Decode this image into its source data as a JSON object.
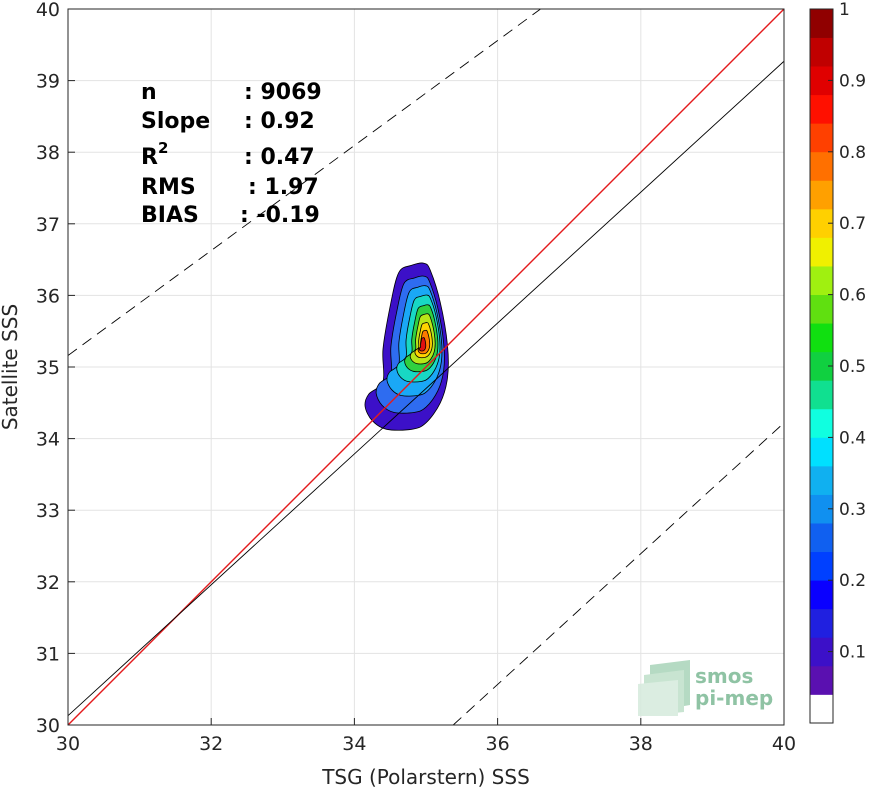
{
  "chart_data": {
    "type": "contour-density",
    "xlabel": "TSG (Polarstern) SSS",
    "ylabel": "Satellite SSS",
    "xlim": [
      30,
      40
    ],
    "ylim": [
      30,
      40
    ],
    "xticks": [
      30,
      32,
      34,
      36,
      38,
      40
    ],
    "yticks": [
      30,
      31,
      32,
      33,
      34,
      35,
      36,
      37,
      38,
      39,
      40
    ],
    "grid": true,
    "stats": [
      {
        "label": "n",
        "value": ": 9069"
      },
      {
        "label": "Slope",
        "value": ": 0.92"
      },
      {
        "label": "R",
        "sup": "2",
        "value": ": 0.47"
      },
      {
        "label": "RMS",
        "value": ": 1.97"
      },
      {
        "label": "BIAS",
        "value": ": -0.19"
      }
    ],
    "lines": [
      {
        "kind": "one-to-one",
        "color": "#e41a1c",
        "x": [
          30,
          40
        ],
        "y": [
          30,
          40
        ]
      },
      {
        "kind": "regression",
        "color": "#000000",
        "x": [
          30,
          40
        ],
        "y": [
          30.13,
          39.27
        ]
      },
      {
        "kind": "plus-3-rms",
        "color": "#000000",
        "dashed": true,
        "x": [
          30,
          36.6
        ],
        "y": [
          35.16,
          40
        ]
      },
      {
        "kind": "minus-3-rms",
        "color": "#000000",
        "dashed": true,
        "x": [
          35.38,
          40
        ],
        "y": [
          30,
          34.22
        ]
      }
    ],
    "density": {
      "peak": [
        34.97,
        35.28
      ],
      "levels": [
        0.05,
        0.15,
        0.25,
        0.35,
        0.45,
        0.55,
        0.65,
        0.75,
        0.85
      ],
      "level_colors": [
        "#3c10c8",
        "#2e6cf0",
        "#1aa8f6",
        "#18d8c4",
        "#30d040",
        "#b8e618",
        "#ffd400",
        "#ff7a00",
        "#e01010"
      ],
      "outer_contour": [
        [
          34.62,
          36.32
        ],
        [
          34.8,
          36.42
        ],
        [
          34.97,
          36.45
        ],
        [
          35.06,
          36.35
        ],
        [
          35.2,
          35.9
        ],
        [
          35.3,
          35.3
        ],
        [
          35.3,
          34.85
        ],
        [
          35.2,
          34.5
        ],
        [
          35.0,
          34.22
        ],
        [
          34.8,
          34.13
        ],
        [
          34.45,
          34.13
        ],
        [
          34.25,
          34.25
        ],
        [
          34.15,
          34.45
        ],
        [
          34.2,
          34.62
        ],
        [
          34.4,
          34.8
        ],
        [
          34.4,
          35.25
        ],
        [
          34.5,
          35.85
        ]
      ]
    },
    "colorbar": {
      "min": 0,
      "max": 1,
      "ticks": [
        0.1,
        0.2,
        0.3,
        0.4,
        0.5,
        0.6,
        0.7,
        0.8,
        0.9,
        1
      ],
      "tick_labels": [
        "0.1",
        "0.2",
        "0.3",
        "0.4",
        "0.5",
        "0.6",
        "0.7",
        "0.8",
        "0.9",
        "1"
      ],
      "colors": [
        "#ffffff",
        "#5a10b0",
        "#3c10c8",
        "#2020e0",
        "#0a00ff",
        "#0040ff",
        "#1060f0",
        "#1090f0",
        "#10b0f0",
        "#00e0ff",
        "#10ffe0",
        "#10e090",
        "#10d040",
        "#10e010",
        "#60e010",
        "#a0f010",
        "#f0f000",
        "#ffd000",
        "#ffa000",
        "#ff7000",
        "#ff4000",
        "#ff1000",
        "#e00000",
        "#c00000",
        "#900000"
      ]
    },
    "watermark": {
      "line1": "smos",
      "line2": "pi-mep"
    }
  }
}
